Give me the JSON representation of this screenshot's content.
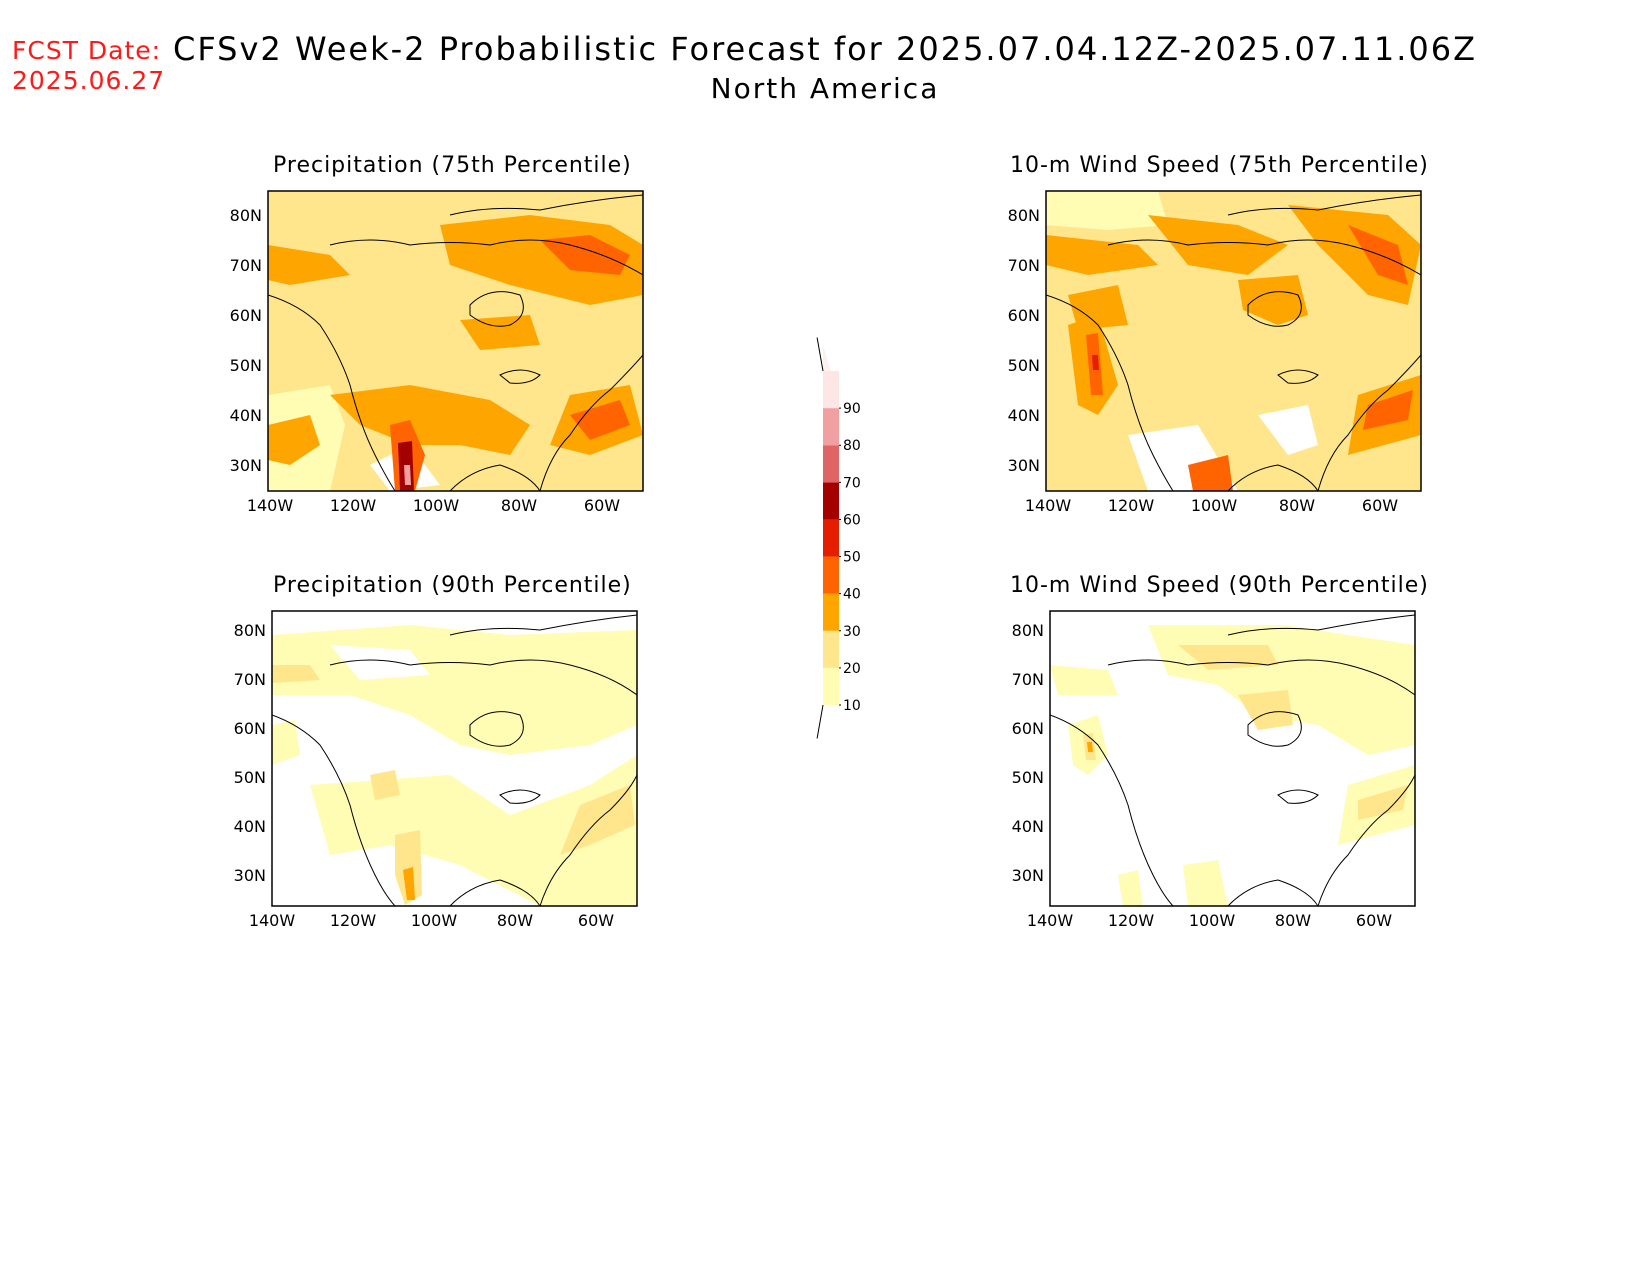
{
  "header": {
    "fcst_label": "FCST Date:",
    "fcst_date": "2025.06.27",
    "title": "CFSv2 Week-2 Probabilistic Forecast for 2025.07.04.12Z-2025.07.11.06Z",
    "subtitle": "North America"
  },
  "panels": [
    {
      "title": "Precipitation (75th Percentile)"
    },
    {
      "title": "10-m Wind Speed (75th Percentile)"
    },
    {
      "title": "Precipitation (90th Percentile)"
    },
    {
      "title": "10-m Wind Speed (90th Percentile)"
    }
  ],
  "axes": {
    "lat_labels": [
      "80N",
      "70N",
      "60N",
      "50N",
      "40N",
      "30N"
    ],
    "lon_labels": [
      "140W",
      "120W",
      "100W",
      "80W",
      "60W"
    ]
  },
  "colorbar": {
    "levels": [
      "10",
      "20",
      "30",
      "40",
      "50",
      "60",
      "70",
      "80",
      "90"
    ],
    "colors": [
      "#fffcb4",
      "#ffe68c",
      "#ffa500",
      "#ff6400",
      "#e61e00",
      "#a50000",
      "#e06464",
      "#f0a0a0",
      "#ffe6e6"
    ]
  }
}
